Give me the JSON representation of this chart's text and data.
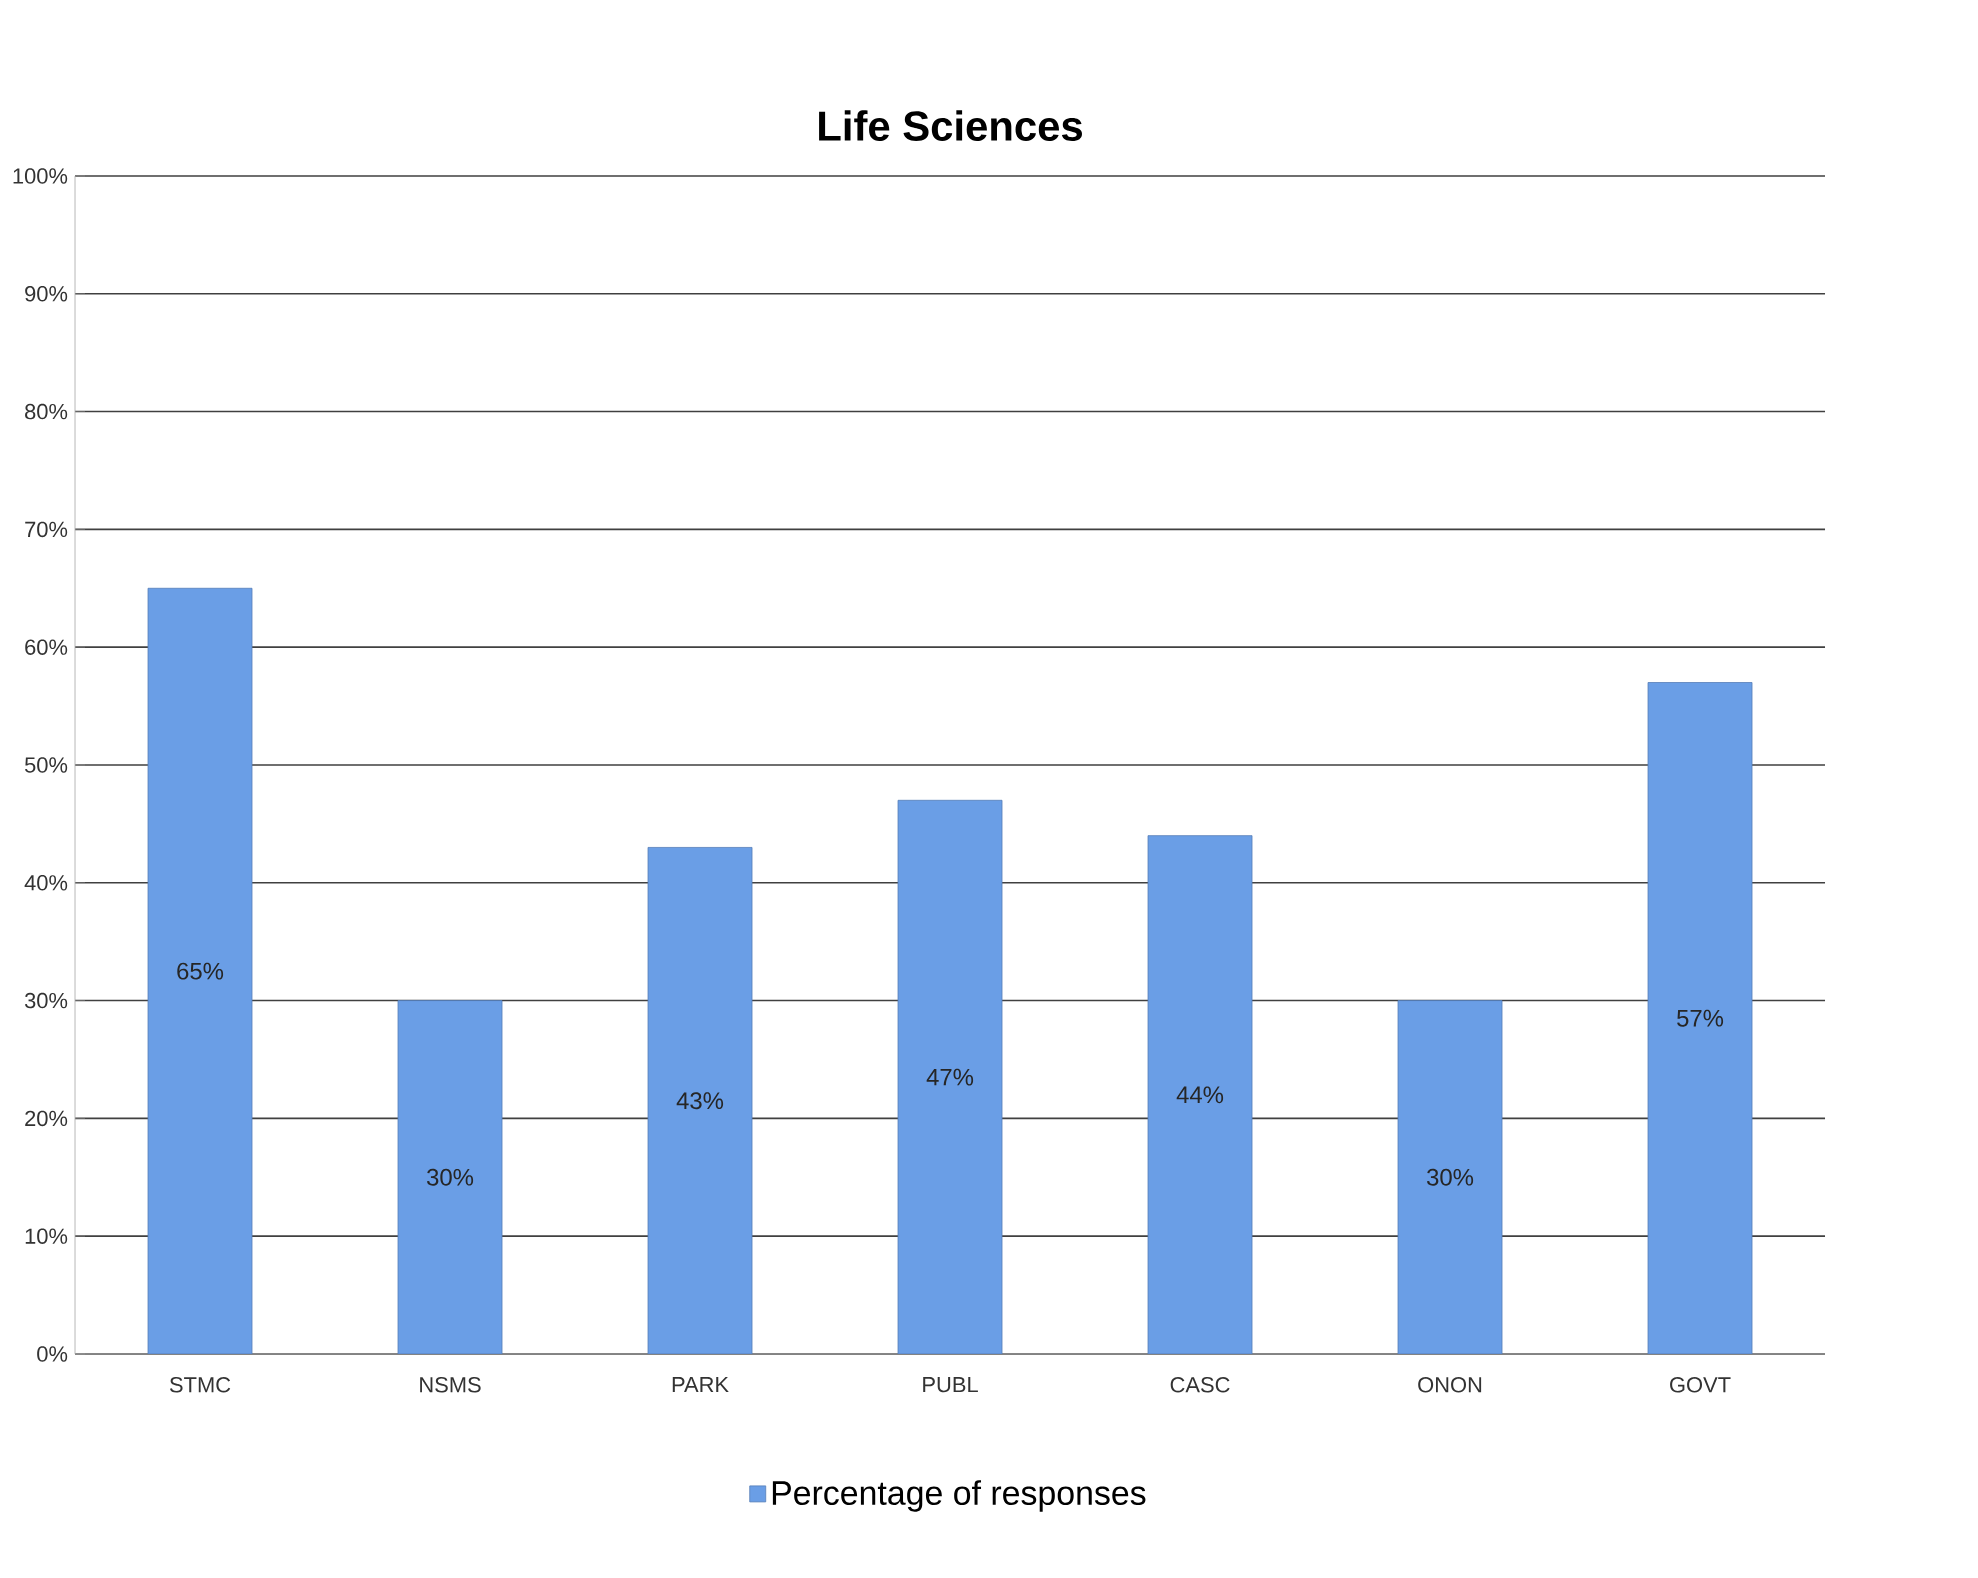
{
  "chart_data": {
    "type": "bar",
    "title": "Life Sciences",
    "categories": [
      "STMC",
      "NSMS",
      "PARK",
      "PUBL",
      "CASC",
      "ONON",
      "GOVT"
    ],
    "series": [
      {
        "name": "Percentage of responses",
        "color": "#6a9ee6",
        "values": [
          65,
          30,
          43,
          47,
          44,
          30,
          57
        ],
        "value_labels": [
          "65%",
          "30%",
          "43%",
          "47%",
          "44%",
          "30%",
          "57%"
        ]
      }
    ],
    "ylim": [
      0,
      100
    ],
    "yticks": [
      {
        "value": 0,
        "label": "0%"
      },
      {
        "value": 10,
        "label": "10%"
      },
      {
        "value": 20,
        "label": "20%"
      },
      {
        "value": 30,
        "label": "30%"
      },
      {
        "value": 40,
        "label": "40%"
      },
      {
        "value": 50,
        "label": "50%"
      },
      {
        "value": 60,
        "label": "60%"
      },
      {
        "value": 70,
        "label": "70%"
      },
      {
        "value": 80,
        "label": "80%"
      },
      {
        "value": 90,
        "label": "90%"
      },
      {
        "value": 100,
        "label": "100%"
      }
    ],
    "grid": "y",
    "legend": "bottom"
  }
}
